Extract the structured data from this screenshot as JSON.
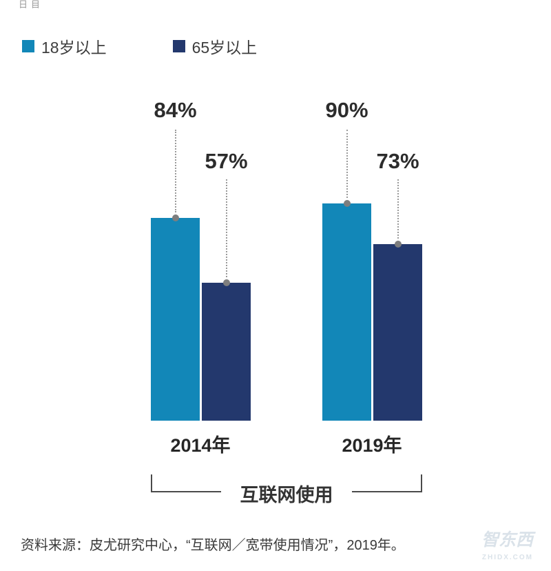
{
  "artifact": {
    "text": "日目"
  },
  "legend": {
    "items": [
      {
        "label": "18岁以上",
        "color": "#1287b8"
      },
      {
        "label": "65岁以上",
        "color": "#23386d"
      }
    ]
  },
  "chart_data": {
    "type": "bar",
    "categories": [
      "2014年",
      "2019年"
    ],
    "series": [
      {
        "name": "18岁以上",
        "color": "#1287b8",
        "values": [
          84,
          90
        ]
      },
      {
        "name": "65岁以上",
        "color": "#23386d",
        "values": [
          57,
          73
        ]
      }
    ],
    "value_labels": [
      [
        "84%",
        "90%"
      ],
      [
        "57%",
        "73%"
      ]
    ],
    "ylim": [
      0,
      100
    ],
    "grid": false,
    "legend_position": "top-left",
    "group_label": "互联网使用",
    "style": {
      "dot_color": "#7e7e7e",
      "leader_line_color": "#9a9a9a",
      "bracket_color": "#4a4a4a"
    }
  },
  "source": {
    "text": "资料来源：皮尤研究中心，“互联网／宽带使用情况”，2019年。"
  },
  "watermark": {
    "text": "智东西",
    "subtext": "ZHIDX.COM"
  }
}
